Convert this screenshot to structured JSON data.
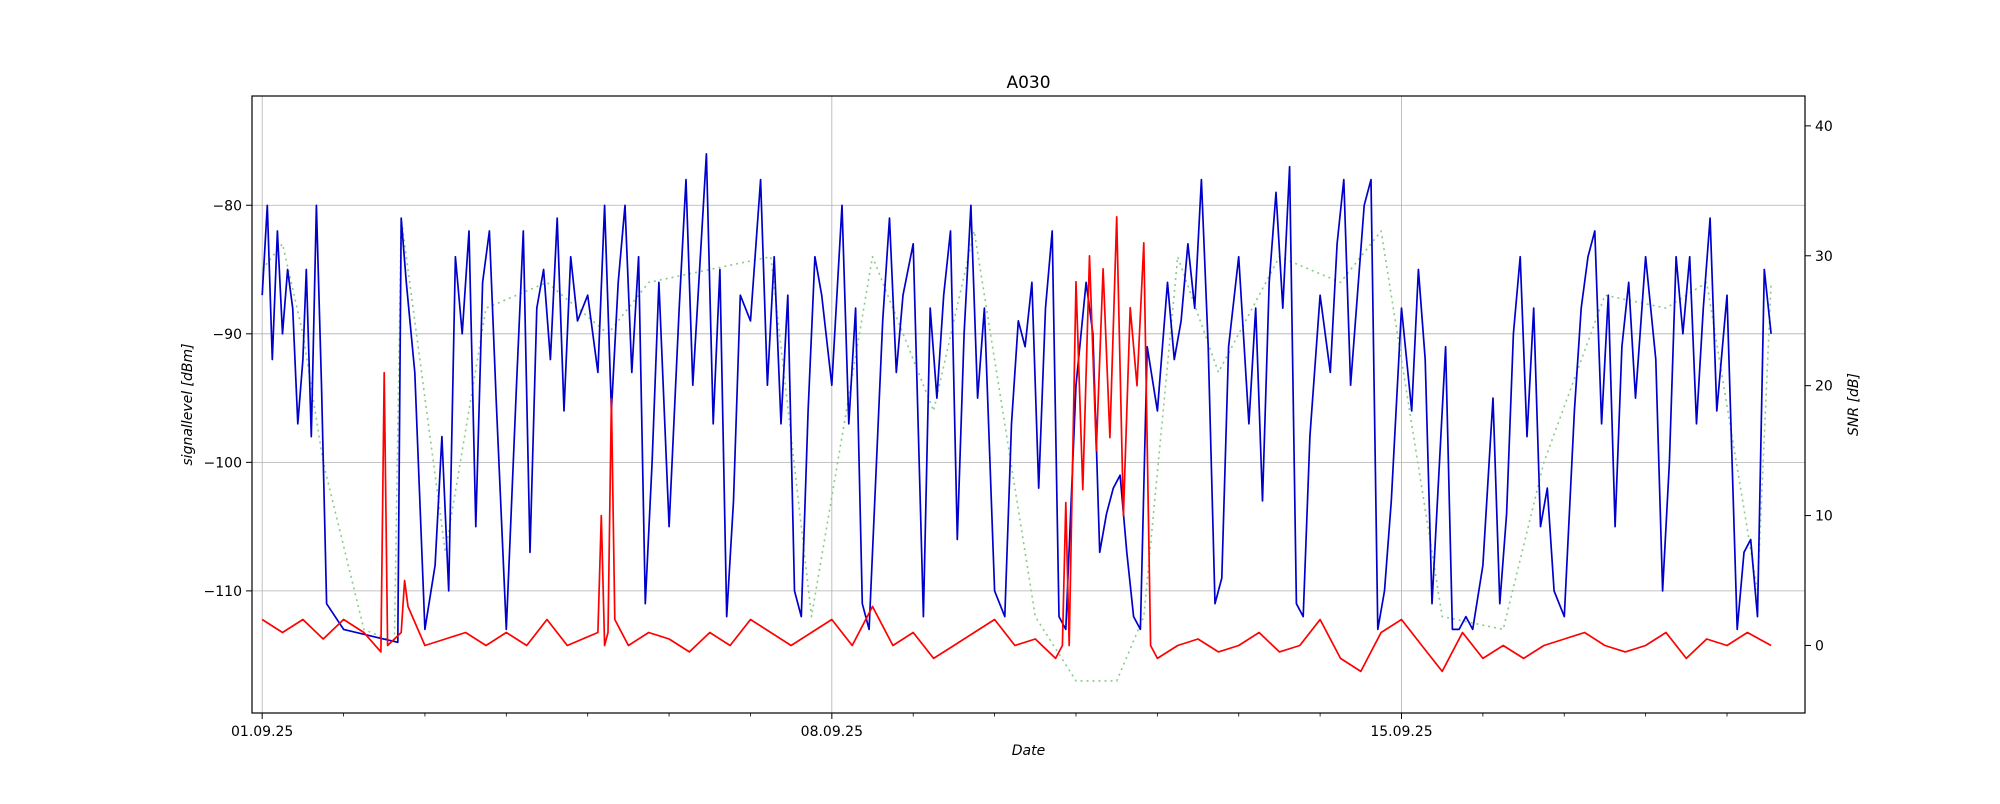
{
  "chart_data": {
    "type": "line",
    "title": "A030",
    "xlabel": "Date",
    "ylabel": "signallevel [dBm]",
    "y2label": "SNR [dB]",
    "x_range": [
      "2025-08-31T21:00",
      "2025-09-19T23:00"
    ],
    "ylim": [
      -119.5,
      -71.5
    ],
    "y2lim": [
      -5.2,
      42.3
    ],
    "grid": true,
    "x_ticks": [
      {
        "date": "2025-09-01",
        "label": "01.09.25"
      },
      {
        "date": "2025-09-08",
        "label": "08.09.25"
      },
      {
        "date": "2025-09-15",
        "label": "15.09.25"
      }
    ],
    "x_minor_ticks": [
      "2025-09-02",
      "2025-09-03",
      "2025-09-04",
      "2025-09-05",
      "2025-09-06",
      "2025-09-07",
      "2025-09-09",
      "2025-09-10",
      "2025-09-11",
      "2025-09-12",
      "2025-09-13",
      "2025-09-14",
      "2025-09-16",
      "2025-09-17",
      "2025-09-18",
      "2025-09-19"
    ],
    "y_ticks": [
      -80,
      -90,
      -100,
      -110
    ],
    "y2_ticks": [
      40,
      30,
      20,
      10,
      0
    ],
    "series": [
      {
        "axis": "left",
        "color": "#0000cc",
        "style": "solid",
        "x": [
          "2025-09-01T00:00",
          "2025-09-01T01:30",
          "2025-09-01T03:00",
          "2025-09-01T04:30",
          "2025-09-01T06:00",
          "2025-09-01T07:30",
          "2025-09-01T09:00",
          "2025-09-01T10:30",
          "2025-09-01T12:00",
          "2025-09-01T13:00",
          "2025-09-01T14:30",
          "2025-09-01T16:00",
          "2025-09-01T17:30",
          "2025-09-01T19:00",
          "2025-09-02T00:00",
          "2025-09-02T08:00",
          "2025-09-02T16:00",
          "2025-09-02T17:00",
          "2025-09-02T18:30",
          "2025-09-02T21:00",
          "2025-09-03T00:00",
          "2025-09-03T03:00",
          "2025-09-03T05:00",
          "2025-09-03T07:00",
          "2025-09-03T09:00",
          "2025-09-03T11:00",
          "2025-09-03T13:00",
          "2025-09-03T15:00",
          "2025-09-03T17:00",
          "2025-09-03T19:00",
          "2025-09-03T21:00",
          "2025-09-04T00:00",
          "2025-09-04T03:00",
          "2025-09-04T05:00",
          "2025-09-04T07:00",
          "2025-09-04T09:00",
          "2025-09-04T11:00",
          "2025-09-04T13:00",
          "2025-09-04T15:00",
          "2025-09-04T17:00",
          "2025-09-04T19:00",
          "2025-09-04T21:00",
          "2025-09-05T00:00",
          "2025-09-05T03:00",
          "2025-09-05T05:00",
          "2025-09-05T07:00",
          "2025-09-05T09:00",
          "2025-09-05T11:00",
          "2025-09-05T13:00",
          "2025-09-05T15:00",
          "2025-09-05T17:00",
          "2025-09-05T19:00",
          "2025-09-05T21:00",
          "2025-09-06T00:00",
          "2025-09-06T03:00",
          "2025-09-06T05:00",
          "2025-09-06T07:00",
          "2025-09-06T09:00",
          "2025-09-06T11:00",
          "2025-09-06T13:00",
          "2025-09-06T15:00",
          "2025-09-06T17:00",
          "2025-09-06T19:00",
          "2025-09-06T21:00",
          "2025-09-07T00:00",
          "2025-09-07T03:00",
          "2025-09-07T05:00",
          "2025-09-07T07:00",
          "2025-09-07T09:00",
          "2025-09-07T11:00",
          "2025-09-07T13:00",
          "2025-09-07T15:00",
          "2025-09-07T17:00",
          "2025-09-07T19:00",
          "2025-09-07T21:00",
          "2025-09-08T00:00",
          "2025-09-08T03:00",
          "2025-09-08T05:00",
          "2025-09-08T07:00",
          "2025-09-08T09:00",
          "2025-09-08T11:00",
          "2025-09-08T13:00",
          "2025-09-08T15:00",
          "2025-09-08T17:00",
          "2025-09-08T19:00",
          "2025-09-08T21:00",
          "2025-09-09T00:00",
          "2025-09-09T03:00",
          "2025-09-09T05:00",
          "2025-09-09T07:00",
          "2025-09-09T09:00",
          "2025-09-09T11:00",
          "2025-09-09T13:00",
          "2025-09-09T15:00",
          "2025-09-09T17:00",
          "2025-09-09T19:00",
          "2025-09-09T21:00",
          "2025-09-10T00:00",
          "2025-09-10T03:00",
          "2025-09-10T05:00",
          "2025-09-10T07:00",
          "2025-09-10T09:00",
          "2025-09-10T11:00",
          "2025-09-10T13:00",
          "2025-09-10T15:00",
          "2025-09-10T17:00",
          "2025-09-10T19:00",
          "2025-09-10T21:00",
          "2025-09-11T00:00",
          "2025-09-11T03:00",
          "2025-09-11T05:00",
          "2025-09-11T07:00",
          "2025-09-11T09:00",
          "2025-09-11T11:00",
          "2025-09-11T13:00",
          "2025-09-11T15:00",
          "2025-09-11T17:00",
          "2025-09-11T19:00",
          "2025-09-11T21:00",
          "2025-09-12T00:00",
          "2025-09-12T03:00",
          "2025-09-12T05:00",
          "2025-09-12T07:00",
          "2025-09-12T09:00",
          "2025-09-12T11:00",
          "2025-09-12T13:00",
          "2025-09-12T15:00",
          "2025-09-12T17:00",
          "2025-09-12T19:00",
          "2025-09-12T21:00",
          "2025-09-13T00:00",
          "2025-09-13T03:00",
          "2025-09-13T05:00",
          "2025-09-13T07:00",
          "2025-09-13T09:00",
          "2025-09-13T11:00",
          "2025-09-13T13:00",
          "2025-09-13T15:00",
          "2025-09-13T17:00",
          "2025-09-13T19:00",
          "2025-09-13T21:00",
          "2025-09-14T00:00",
          "2025-09-14T03:00",
          "2025-09-14T05:00",
          "2025-09-14T07:00",
          "2025-09-14T09:00",
          "2025-09-14T11:00",
          "2025-09-14T13:00",
          "2025-09-14T15:00",
          "2025-09-14T17:00",
          "2025-09-14T19:00",
          "2025-09-14T21:00",
          "2025-09-15T00:00",
          "2025-09-15T03:00",
          "2025-09-15T05:00",
          "2025-09-15T07:00",
          "2025-09-15T09:00",
          "2025-09-15T11:00",
          "2025-09-15T13:00",
          "2025-09-15T15:00",
          "2025-09-15T17:00",
          "2025-09-15T19:00",
          "2025-09-15T21:00",
          "2025-09-16T00:00",
          "2025-09-16T03:00",
          "2025-09-16T05:00",
          "2025-09-16T07:00",
          "2025-09-16T09:00",
          "2025-09-16T11:00",
          "2025-09-16T13:00",
          "2025-09-16T15:00",
          "2025-09-16T17:00",
          "2025-09-16T19:00",
          "2025-09-16T21:00",
          "2025-09-17T00:00",
          "2025-09-17T03:00",
          "2025-09-17T05:00",
          "2025-09-17T07:00",
          "2025-09-17T09:00",
          "2025-09-17T11:00",
          "2025-09-17T13:00",
          "2025-09-17T15:00",
          "2025-09-17T17:00",
          "2025-09-17T19:00",
          "2025-09-17T21:00",
          "2025-09-18T00:00",
          "2025-09-18T03:00",
          "2025-09-18T05:00",
          "2025-09-18T07:00",
          "2025-09-18T09:00",
          "2025-09-18T11:00",
          "2025-09-18T13:00",
          "2025-09-18T15:00",
          "2025-09-18T17:00",
          "2025-09-18T19:00",
          "2025-09-18T21:00",
          "2025-09-19T00:00",
          "2025-09-19T03:00",
          "2025-09-19T05:00",
          "2025-09-19T07:00",
          "2025-09-19T09:00",
          "2025-09-19T11:00",
          "2025-09-19T13:00"
        ],
        "y": [
          -87,
          -80,
          -92,
          -82,
          -90,
          -85,
          -88,
          -97,
          -92,
          -85,
          -98,
          -80,
          -94,
          -111,
          -113,
          -113.5,
          -114,
          -81,
          -86,
          -93,
          -113,
          -108,
          -98,
          -110,
          -84,
          -90,
          -82,
          -105,
          -86,
          -82,
          -95,
          -113,
          -94,
          -82,
          -107,
          -88,
          -85,
          -92,
          -81,
          -96,
          -84,
          -89,
          -87,
          -93,
          -80,
          -96,
          -86,
          -80,
          -93,
          -84,
          -111,
          -100,
          -86,
          -105,
          -88,
          -78,
          -94,
          -85,
          -76,
          -97,
          -85,
          -112,
          -103,
          -87,
          -89,
          -78,
          -94,
          -84,
          -97,
          -87,
          -110,
          -112,
          -96,
          -84,
          -87,
          -94,
          -80,
          -97,
          -88,
          -111,
          -113,
          -101,
          -89,
          -81,
          -93,
          -87,
          -83,
          -112,
          -88,
          -95,
          -87,
          -82,
          -106,
          -90,
          -80,
          -95,
          -88,
          -110,
          -112,
          -97,
          -89,
          -91,
          -86,
          -102,
          -88,
          -82,
          -112,
          -113,
          -94,
          -86,
          -90,
          -107,
          -104,
          -102,
          -101,
          -107,
          -112,
          -113,
          -91,
          -96,
          -86,
          -92,
          -89,
          -83,
          -88,
          -78,
          -91,
          -111,
          -109,
          -91,
          -84,
          -97,
          -88,
          -103,
          -86,
          -79,
          -88,
          -77,
          -111,
          -112,
          -98,
          -87,
          -93,
          -83,
          -78,
          -94,
          -87,
          -80,
          -78,
          -113,
          -110,
          -103,
          -88,
          -96,
          -85,
          -92,
          -111,
          -101,
          -91,
          -113,
          -113,
          -112,
          -113,
          -108,
          -95,
          -111,
          -104,
          -90,
          -84,
          -98,
          -88,
          -105,
          -102,
          -110,
          -112,
          -96,
          -88,
          -84,
          -82,
          -97,
          -87,
          -105,
          -91,
          -86,
          -95,
          -84,
          -92,
          -110,
          -100,
          -84,
          -90,
          -84,
          -97,
          -88,
          -81,
          -96,
          -87,
          -113,
          -107,
          -106,
          -112,
          -85,
          -90
        ]
      },
      {
        "axis": "left",
        "color": "#88cc88",
        "style": "dotted",
        "x": [
          "2025-09-01T00:00",
          "2025-09-01T06:00",
          "2025-09-01T12:00",
          "2025-09-01T18:00",
          "2025-09-02T06:00",
          "2025-09-02T15:00",
          "2025-09-02T17:00",
          "2025-09-03T06:00",
          "2025-09-03T18:00",
          "2025-09-04T12:00",
          "2025-09-05T06:00",
          "2025-09-05T18:00",
          "2025-09-06T12:00",
          "2025-09-07T06:00",
          "2025-09-07T18:00",
          "2025-09-08T12:00",
          "2025-09-09T06:00",
          "2025-09-09T18:00",
          "2025-09-10T12:00",
          "2025-09-11T00:00",
          "2025-09-11T03:00",
          "2025-09-11T12:00",
          "2025-09-11T20:00",
          "2025-09-12T06:00",
          "2025-09-12T18:00",
          "2025-09-13T12:00",
          "2025-09-14T06:00",
          "2025-09-14T18:00",
          "2025-09-15T12:00",
          "2025-09-16T06:00",
          "2025-09-16T18:00",
          "2025-09-17T12:00",
          "2025-09-18T06:00",
          "2025-09-18T18:00",
          "2025-09-19T09:00",
          "2025-09-19T13:00"
        ],
        "y": [
          -85,
          -83,
          -90,
          -100,
          -113,
          -114,
          -81,
          -107,
          -88,
          -86,
          -90,
          -86,
          -85,
          -84,
          -112,
          -84,
          -96,
          -82,
          -112,
          -117,
          -117,
          -117,
          -112,
          -84,
          -93,
          -84,
          -86,
          -82,
          -112,
          -113,
          -100,
          -87,
          -88,
          -86,
          -110,
          -86
        ]
      },
      {
        "axis": "right",
        "color": "#ff0000",
        "style": "solid",
        "x": [
          "2025-09-01T00:00",
          "2025-09-01T06:00",
          "2025-09-01T12:00",
          "2025-09-01T18:00",
          "2025-09-02T00:00",
          "2025-09-02T06:00",
          "2025-09-02T11:00",
          "2025-09-02T12:00",
          "2025-09-02T13:00",
          "2025-09-02T17:00",
          "2025-09-02T18:00",
          "2025-09-02T19:00",
          "2025-09-03T00:00",
          "2025-09-03T06:00",
          "2025-09-03T12:00",
          "2025-09-03T18:00",
          "2025-09-04T00:00",
          "2025-09-04T06:00",
          "2025-09-04T12:00",
          "2025-09-04T18:00",
          "2025-09-05T03:00",
          "2025-09-05T04:00",
          "2025-09-05T05:00",
          "2025-09-05T06:00",
          "2025-09-05T07:00",
          "2025-09-05T08:00",
          "2025-09-05T12:00",
          "2025-09-05T18:00",
          "2025-09-06T00:00",
          "2025-09-06T06:00",
          "2025-09-06T12:00",
          "2025-09-06T18:00",
          "2025-09-07T00:00",
          "2025-09-07T06:00",
          "2025-09-07T12:00",
          "2025-09-07T18:00",
          "2025-09-08T00:00",
          "2025-09-08T06:00",
          "2025-09-08T12:00",
          "2025-09-08T18:00",
          "2025-09-09T00:00",
          "2025-09-09T06:00",
          "2025-09-09T12:00",
          "2025-09-09T18:00",
          "2025-09-10T00:00",
          "2025-09-10T06:00",
          "2025-09-10T12:00",
          "2025-09-10T18:00",
          "2025-09-10T20:00",
          "2025-09-10T21:00",
          "2025-09-10T22:00",
          "2025-09-11T00:00",
          "2025-09-11T02:00",
          "2025-09-11T04:00",
          "2025-09-11T06:00",
          "2025-09-11T08:00",
          "2025-09-11T10:00",
          "2025-09-11T12:00",
          "2025-09-11T14:00",
          "2025-09-11T16:00",
          "2025-09-11T18:00",
          "2025-09-11T20:00",
          "2025-09-11T22:00",
          "2025-09-12T00:00",
          "2025-09-12T06:00",
          "2025-09-12T12:00",
          "2025-09-12T18:00",
          "2025-09-13T00:00",
          "2025-09-13T06:00",
          "2025-09-13T12:00",
          "2025-09-13T18:00",
          "2025-09-14T00:00",
          "2025-09-14T06:00",
          "2025-09-14T12:00",
          "2025-09-14T18:00",
          "2025-09-15T00:00",
          "2025-09-15T06:00",
          "2025-09-15T12:00",
          "2025-09-15T18:00",
          "2025-09-16T00:00",
          "2025-09-16T06:00",
          "2025-09-16T12:00",
          "2025-09-16T18:00",
          "2025-09-17T00:00",
          "2025-09-17T06:00",
          "2025-09-17T12:00",
          "2025-09-17T18:00",
          "2025-09-18T00:00",
          "2025-09-18T06:00",
          "2025-09-18T12:00",
          "2025-09-18T18:00",
          "2025-09-19T00:00",
          "2025-09-19T06:00",
          "2025-09-19T13:00"
        ],
        "y": [
          2,
          1,
          2,
          0.5,
          2,
          1,
          -0.5,
          21,
          0,
          1,
          5,
          3,
          0,
          0.5,
          1,
          0,
          1,
          0,
          2,
          0,
          1,
          10,
          0,
          1,
          19,
          2,
          0,
          1,
          0.5,
          -0.5,
          1,
          0,
          2,
          1,
          0,
          1,
          2,
          0,
          3,
          0,
          1,
          -1,
          0,
          1,
          2,
          0,
          0.5,
          -1,
          0,
          11,
          0,
          28,
          12,
          30,
          15,
          29,
          16,
          33,
          10,
          26,
          20,
          31,
          0,
          -1,
          0,
          0.5,
          -0.5,
          0,
          1,
          -0.5,
          0,
          2,
          -1,
          -2,
          1,
          2,
          0,
          -2,
          1,
          -1,
          0,
          -1,
          0,
          0.5,
          1,
          0,
          -0.5,
          0,
          1,
          -1,
          0.5,
          0,
          1,
          0
        ]
      }
    ]
  }
}
